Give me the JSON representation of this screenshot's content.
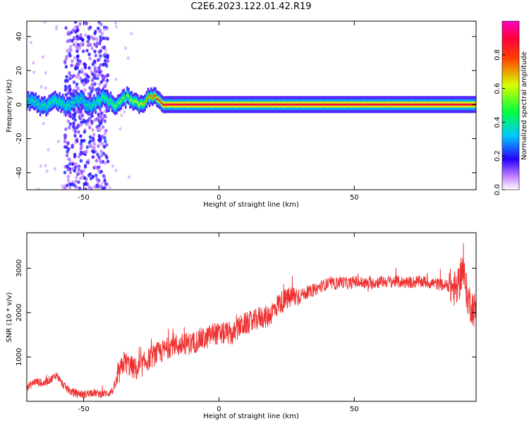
{
  "title": "C2E6.2023.122.01.42.R19",
  "colors": {
    "snr_line": "#ee3030",
    "axis": "#000000",
    "background": "#ffffff"
  },
  "chart_data": [
    {
      "type": "heatmap",
      "name": "spectrogram",
      "xlabel": "Height of straight line (km)",
      "ylabel": "Frequency (Hz)",
      "xlim": [
        -71,
        95
      ],
      "ylim": [
        -50,
        49
      ],
      "xticks": [
        "-50",
        "0",
        "50"
      ],
      "xtick_values": [
        -50,
        0,
        50
      ],
      "yticks": [
        "-40",
        "-20",
        "0",
        "20",
        "40"
      ],
      "ytick_values": [
        -40,
        -20,
        0,
        20,
        40
      ],
      "colormap": "rainbow (white-violet-blue-cyan-green-yellow-red-magenta)",
      "colorbar": {
        "label": "Normalized spectral amplitude",
        "range": [
          0.0,
          1.0
        ],
        "ticks": [
          "0.0",
          "0.2",
          "0.4",
          "0.6",
          "0.8"
        ],
        "tick_values": [
          0.0,
          0.2,
          0.4,
          0.6,
          0.8
        ]
      },
      "features": [
        {
          "description": "dominant tone near 0 Hz",
          "x_range": [
            -71,
            95
          ],
          "frequency_hz": 0,
          "amplitude_by_height": [
            [
              -71,
              0.4
            ],
            [
              -60,
              0.45
            ],
            [
              -50,
              0.4
            ],
            [
              -40,
              0.5
            ],
            [
              -30,
              0.6
            ],
            [
              -20,
              0.9
            ],
            [
              95,
              0.9
            ]
          ]
        },
        {
          "description": "broadband scatter",
          "x_range": [
            -57,
            -41
          ],
          "frequency_range": [
            -50,
            49
          ],
          "amplitude": 0.15
        }
      ]
    },
    {
      "type": "line",
      "name": "snr",
      "xlabel": "Height of straight line (km)",
      "ylabel": "SNR (10 * v/v)",
      "xlim": [
        -71,
        95
      ],
      "ylim": [
        0,
        3800
      ],
      "xticks": [
        "-50",
        "0",
        "50"
      ],
      "xtick_values": [
        -50,
        0,
        50
      ],
      "yticks": [
        "1000",
        "2000",
        "3000"
      ],
      "ytick_values": [
        1000,
        2000,
        3000
      ],
      "series": [
        {
          "x": [
            -71,
            -68,
            -65,
            -62,
            -60,
            -58,
            -55,
            -52,
            -50,
            -47,
            -44,
            -41,
            -39,
            -37,
            -35,
            -33,
            -30,
            -27,
            -25,
            -22,
            -20,
            -17,
            -15,
            -12,
            -10,
            -7,
            -5,
            -2,
            0,
            3,
            5,
            8,
            10,
            13,
            15,
            18,
            20,
            22,
            25,
            27,
            30,
            33,
            35,
            38,
            40,
            43,
            45,
            48,
            50,
            55,
            60,
            65,
            70,
            75,
            80,
            85,
            88,
            90,
            92,
            95
          ],
          "y": [
            300,
            450,
            400,
            500,
            600,
            400,
            220,
            180,
            150,
            200,
            170,
            180,
            250,
            600,
            900,
            800,
            700,
            900,
            1000,
            1100,
            1150,
            1300,
            1250,
            1300,
            1300,
            1400,
            1400,
            1550,
            1500,
            1550,
            1500,
            1700,
            1750,
            1800,
            1900,
            1900,
            2050,
            2200,
            2300,
            2350,
            2400,
            2450,
            2500,
            2600,
            2650,
            2650,
            2700,
            2650,
            2700,
            2650,
            2700,
            2700,
            2680,
            2700,
            2650,
            2600,
            2500,
            3000,
            2300,
            2000
          ]
        }
      ]
    }
  ]
}
